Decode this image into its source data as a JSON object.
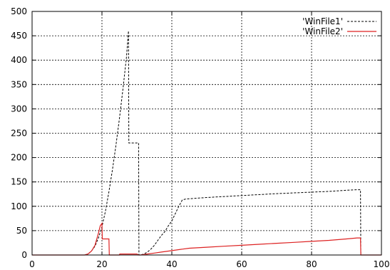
{
  "chart_data": {
    "type": "line",
    "title": "",
    "xlabel": "",
    "ylabel": "",
    "xlim": [
      0,
      100
    ],
    "ylim": [
      0,
      500
    ],
    "xticks": [
      0,
      20,
      40,
      60,
      80,
      100
    ],
    "yticks": [
      0,
      50,
      100,
      150,
      200,
      250,
      300,
      350,
      400,
      450,
      500
    ],
    "grid": true,
    "legend_position": "top-right",
    "series": [
      {
        "name": "'WinFile1'",
        "color": "#000000",
        "style": "dashed",
        "x": [
          0,
          15,
          16,
          17,
          18,
          19,
          20,
          21,
          22,
          23,
          24,
          25,
          26,
          27,
          27.6,
          27.7,
          28,
          29,
          30,
          30.5,
          30.6,
          31,
          32,
          33,
          34,
          35,
          36,
          37,
          38,
          39,
          40,
          41,
          42,
          43,
          44,
          50,
          60,
          70,
          80,
          86,
          90,
          93,
          94,
          94.1,
          95,
          100
        ],
        "y": [
          0,
          0,
          2,
          8,
          18,
          35,
          58,
          90,
          130,
          175,
          225,
          280,
          340,
          405,
          460,
          230,
          230,
          230,
          230,
          230,
          0,
          0,
          2,
          6,
          12,
          20,
          30,
          40,
          48,
          60,
          70,
          85,
          100,
          113,
          115,
          118,
          122,
          126,
          129,
          131,
          133,
          134,
          134,
          0,
          0,
          0
        ]
      },
      {
        "name": "'WinFile2'",
        "color": "#dd2222",
        "style": "solid",
        "x": [
          0,
          15,
          16,
          17,
          18,
          19,
          19.5,
          20,
          20.1,
          21,
          22,
          22.1,
          23,
          25,
          25.1,
          30,
          30.5,
          31,
          33,
          35,
          37,
          40,
          43,
          45,
          50,
          55,
          60,
          65,
          70,
          75,
          80,
          85,
          90,
          93,
          94,
          94.1,
          95,
          100
        ],
        "y": [
          0,
          0,
          2,
          8,
          20,
          45,
          60,
          65,
          33,
          33,
          33,
          0,
          0,
          0,
          2,
          2,
          0,
          0,
          2,
          4,
          6,
          9,
          12,
          14,
          16,
          18,
          20,
          22,
          24,
          26,
          28,
          30,
          33,
          35,
          35,
          0,
          0,
          0
        ]
      }
    ]
  }
}
